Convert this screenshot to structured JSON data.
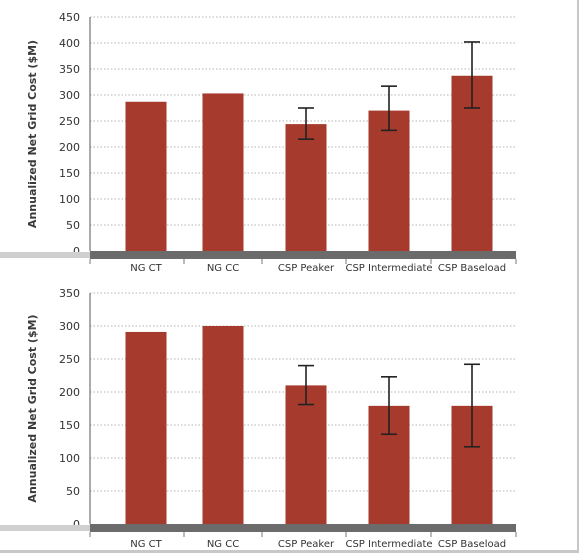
{
  "chart_data": [
    {
      "type": "bar",
      "ylabel": "Annualized Net Grid Cost ($M)",
      "ylim": [
        0,
        450
      ],
      "yticks": [
        0,
        50,
        100,
        150,
        200,
        250,
        300,
        350,
        400,
        450
      ],
      "grid": true,
      "categories": [
        "NG CT",
        "NG CC",
        "CSP Peaker",
        "CSP Intermediate",
        "CSP Baseload"
      ],
      "values": [
        287,
        303,
        244,
        270,
        337
      ],
      "error_low": [
        null,
        null,
        215,
        232,
        275
      ],
      "error_high": [
        null,
        null,
        275,
        317,
        402
      ],
      "bar_color": "#a63a2c",
      "baseline_color": "#6b6b6b"
    },
    {
      "type": "bar",
      "ylabel": "Annualized Net Grid Cost ($M)",
      "ylim": [
        0,
        350
      ],
      "yticks": [
        0,
        50,
        100,
        150,
        200,
        250,
        300,
        350
      ],
      "grid": true,
      "categories": [
        "NG CT",
        "NG CC",
        "CSP Peaker",
        "CSP Intermediate",
        "CSP Baseload"
      ],
      "values": [
        291,
        300,
        210,
        179,
        179
      ],
      "error_low": [
        null,
        null,
        181,
        136,
        117
      ],
      "error_high": [
        null,
        null,
        240,
        223,
        242
      ],
      "bar_color": "#a63a2c",
      "baseline_color": "#6b6b6b"
    }
  ]
}
